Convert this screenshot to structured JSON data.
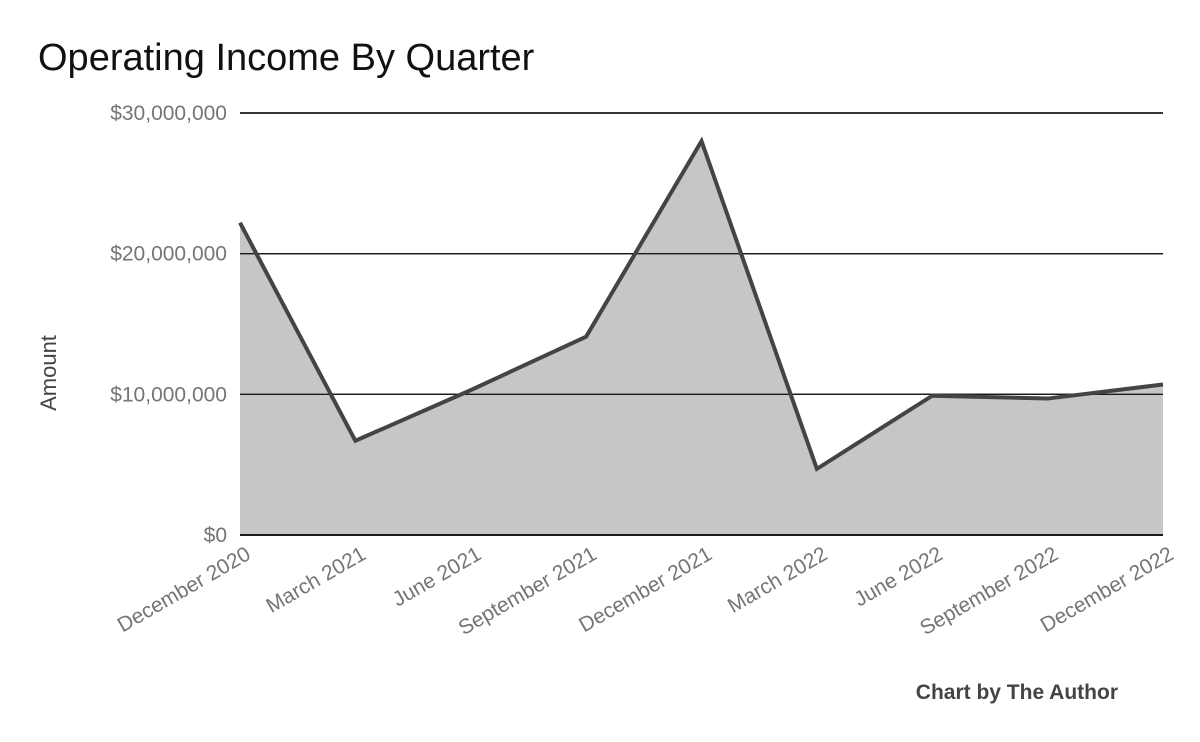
{
  "chart_data": {
    "type": "area",
    "title": "Operating Income By Quarter",
    "xlabel": "",
    "ylabel": "Amount",
    "credit": "Chart by The Author",
    "categories": [
      "December 2020",
      "March 2021",
      "June 2021",
      "September 2021",
      "December 2021",
      "March 2022",
      "June 2022",
      "September 2022",
      "December 2022"
    ],
    "values": [
      22200000,
      6700000,
      10300000,
      14100000,
      28000000,
      4700000,
      9900000,
      9700000,
      10700000
    ],
    "ylim": [
      0,
      30000000
    ],
    "yticks": [
      0,
      10000000,
      20000000,
      30000000
    ],
    "ytick_labels": [
      "$0",
      "$10,000,000",
      "$20,000,000",
      "$30,000,000"
    ],
    "grid": true,
    "legend": "none",
    "colors": {
      "area": "#c6c6c6",
      "line": "#444444",
      "grid": "#1a1a1a",
      "tick_text": "#757575",
      "title_text": "#111111"
    }
  }
}
